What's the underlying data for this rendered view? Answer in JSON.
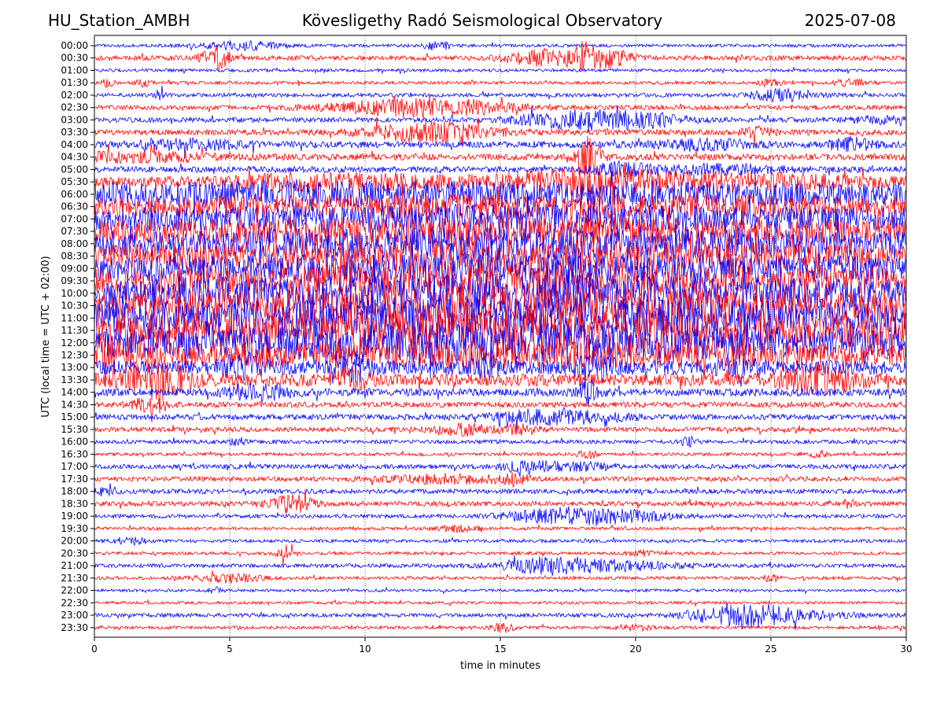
{
  "header": {
    "station": "HU_Station_AMBH",
    "observatory": "Kövesligethy Radó Seismological Observatory",
    "date": "2025-07-08"
  },
  "chart_data": {
    "type": "line",
    "title": "Kövesligethy Radó Seismological Observatory",
    "xlabel": "time in minutes",
    "ylabel": "UTC (local time = UTC + 02:00)",
    "xlim": [
      0,
      30
    ],
    "xticks": [
      0,
      5,
      10,
      15,
      20,
      25,
      30
    ],
    "grid": "vertical dotted lines at x ticks",
    "colors": {
      "blue_rows": "#0000ff",
      "red_rows": "#ff0000"
    },
    "rows": [
      {
        "label": "00:00",
        "color": "#0000ff",
        "base": 0.2,
        "bursts": [
          {
            "t": 5.5,
            "w": 1.0,
            "a": 0.5
          },
          {
            "t": 12.5,
            "w": 0.2,
            "a": 0.5
          },
          {
            "t": 13.0,
            "w": 0.1,
            "a": 0.5
          }
        ]
      },
      {
        "label": "00:30",
        "color": "#ff0000",
        "base": 0.3,
        "bursts": [
          {
            "t": 4.5,
            "w": 0.35,
            "a": 1.5
          },
          {
            "t": 16.5,
            "w": 1.0,
            "a": 0.8
          },
          {
            "t": 18.5,
            "w": 0.9,
            "a": 1.3
          }
        ]
      },
      {
        "label": "01:00",
        "color": "#0000ff",
        "base": 0.2,
        "bursts": []
      },
      {
        "label": "01:30",
        "color": "#ff0000",
        "base": 0.2,
        "bursts": [
          {
            "t": 0.5,
            "w": 0.15,
            "a": 0.5
          },
          {
            "t": 1.8,
            "w": 0.2,
            "a": 0.4
          },
          {
            "t": 25.0,
            "w": 0.3,
            "a": 0.4
          },
          {
            "t": 28.0,
            "w": 0.5,
            "a": 0.4
          }
        ]
      },
      {
        "label": "02:00",
        "color": "#0000ff",
        "base": 0.25,
        "bursts": [
          {
            "t": 2.4,
            "w": 0.1,
            "a": 0.6
          },
          {
            "t": 25.5,
            "w": 0.8,
            "a": 0.7
          }
        ]
      },
      {
        "label": "02:30",
        "color": "#ff0000",
        "base": 0.3,
        "bursts": [
          {
            "t": 11.0,
            "w": 1.8,
            "a": 0.8
          },
          {
            "t": 14.0,
            "w": 1.5,
            "a": 0.6
          }
        ]
      },
      {
        "label": "03:00",
        "color": "#0000ff",
        "base": 0.3,
        "bursts": [
          {
            "t": 18.0,
            "w": 1.5,
            "a": 1.1
          },
          {
            "t": 20.5,
            "w": 1.0,
            "a": 0.7
          },
          {
            "t": 29.0,
            "w": 0.8,
            "a": 0.4
          }
        ]
      },
      {
        "label": "03:30",
        "color": "#ff0000",
        "base": 0.35,
        "bursts": [
          {
            "t": 12.5,
            "w": 1.6,
            "a": 1.1
          },
          {
            "t": 24.5,
            "w": 0.4,
            "a": 0.5
          }
        ]
      },
      {
        "label": "04:00",
        "color": "#0000ff",
        "base": 0.4,
        "bursts": [
          {
            "t": 3.5,
            "w": 1.5,
            "a": 0.5
          },
          {
            "t": 22.5,
            "w": 1.2,
            "a": 0.6
          },
          {
            "t": 28.0,
            "w": 0.6,
            "a": 0.7
          }
        ]
      },
      {
        "label": "04:30",
        "color": "#ff0000",
        "base": 0.4,
        "bursts": [
          {
            "t": 1.5,
            "w": 2.0,
            "a": 0.5
          },
          {
            "t": 18.3,
            "w": 0.3,
            "a": 2.5
          }
        ]
      },
      {
        "label": "05:00",
        "color": "#0000ff",
        "base": 0.4,
        "bursts": [
          {
            "t": 19.5,
            "w": 0.7,
            "a": 0.7
          },
          {
            "t": 23.0,
            "w": 1.5,
            "a": 0.5
          }
        ]
      },
      {
        "label": "05:30",
        "color": "#ff0000",
        "base": 0.6,
        "bursts": [
          {
            "t": 9.0,
            "w": 3.0,
            "a": 0.8
          },
          {
            "t": 18.0,
            "w": 2.0,
            "a": 1.4
          },
          {
            "t": 24.0,
            "w": 3.0,
            "a": 0.8
          }
        ]
      },
      {
        "label": "06:00",
        "color": "#0000ff",
        "base": 1.1,
        "bursts": [
          {
            "t": 5.0,
            "w": 6.0,
            "a": 0.5
          },
          {
            "t": 20.0,
            "w": 8.0,
            "a": 0.6
          }
        ]
      },
      {
        "label": "06:30",
        "color": "#ff0000",
        "base": 1.2,
        "bursts": [
          {
            "t": 15.0,
            "w": 8.0,
            "a": 0.5
          }
        ]
      },
      {
        "label": "07:00",
        "color": "#0000ff",
        "base": 1.4,
        "bursts": [
          {
            "t": 15.0,
            "w": 8.0,
            "a": 0.5
          }
        ]
      },
      {
        "label": "07:30",
        "color": "#ff0000",
        "base": 1.4,
        "bursts": [
          {
            "t": 15.0,
            "w": 8.0,
            "a": 0.6
          }
        ]
      },
      {
        "label": "08:00",
        "color": "#0000ff",
        "base": 1.5,
        "bursts": [
          {
            "t": 15.0,
            "w": 8.0,
            "a": 0.6
          }
        ]
      },
      {
        "label": "08:30",
        "color": "#ff0000",
        "base": 1.5,
        "bursts": [
          {
            "t": 15.0,
            "w": 8.0,
            "a": 0.6
          }
        ]
      },
      {
        "label": "09:00",
        "color": "#0000ff",
        "base": 1.5,
        "bursts": [
          {
            "t": 15.0,
            "w": 8.0,
            "a": 0.6
          }
        ]
      },
      {
        "label": "09:30",
        "color": "#ff0000",
        "base": 1.6,
        "bursts": [
          {
            "t": 15.0,
            "w": 8.0,
            "a": 0.7
          }
        ]
      },
      {
        "label": "10:00",
        "color": "#0000ff",
        "base": 1.7,
        "bursts": [
          {
            "t": 15.0,
            "w": 8.0,
            "a": 0.7
          }
        ]
      },
      {
        "label": "10:30",
        "color": "#ff0000",
        "base": 1.8,
        "bursts": [
          {
            "t": 15.0,
            "w": 8.0,
            "a": 0.7
          }
        ]
      },
      {
        "label": "11:00",
        "color": "#0000ff",
        "base": 1.9,
        "bursts": [
          {
            "t": 15.0,
            "w": 8.0,
            "a": 0.7
          }
        ]
      },
      {
        "label": "11:30",
        "color": "#ff0000",
        "base": 1.9,
        "bursts": [
          {
            "t": 15.0,
            "w": 8.0,
            "a": 0.8
          }
        ]
      },
      {
        "label": "12:00",
        "color": "#0000ff",
        "base": 1.8,
        "bursts": [
          {
            "t": 15.0,
            "w": 8.0,
            "a": 0.7
          }
        ]
      },
      {
        "label": "12:30",
        "color": "#ff0000",
        "base": 1.4,
        "bursts": [
          {
            "t": 0.5,
            "w": 1.0,
            "a": 1.0
          },
          {
            "t": 15.0,
            "w": 8.0,
            "a": 0.4
          }
        ]
      },
      {
        "label": "13:00",
        "color": "#0000ff",
        "base": 0.9,
        "bursts": [
          {
            "t": 5.5,
            "w": 0.6,
            "a": 1.2
          },
          {
            "t": 9.6,
            "w": 0.5,
            "a": 1.3
          },
          {
            "t": 14.5,
            "w": 0.4,
            "a": 1.0
          },
          {
            "t": 18.5,
            "w": 0.5,
            "a": 1.2
          },
          {
            "t": 24.0,
            "w": 0.6,
            "a": 0.8
          }
        ]
      },
      {
        "label": "13:30",
        "color": "#ff0000",
        "base": 0.8,
        "bursts": [
          {
            "t": 2.3,
            "w": 0.8,
            "a": 2.0
          },
          {
            "t": 9.5,
            "w": 0.4,
            "a": 1.2
          },
          {
            "t": 26.8,
            "w": 1.0,
            "a": 1.4
          }
        ]
      },
      {
        "label": "14:00",
        "color": "#0000ff",
        "base": 0.5,
        "bursts": [
          {
            "t": 6.0,
            "w": 0.8,
            "a": 0.9
          },
          {
            "t": 18.3,
            "w": 0.3,
            "a": 1.2
          }
        ]
      },
      {
        "label": "14:30",
        "color": "#ff0000",
        "base": 0.35,
        "bursts": [
          {
            "t": 2.0,
            "w": 0.4,
            "a": 0.8
          }
        ]
      },
      {
        "label": "15:00",
        "color": "#0000ff",
        "base": 0.35,
        "bursts": [
          {
            "t": 16.0,
            "w": 1.0,
            "a": 0.6
          },
          {
            "t": 18.0,
            "w": 1.2,
            "a": 0.6
          }
        ]
      },
      {
        "label": "15:30",
        "color": "#ff0000",
        "base": 0.3,
        "bursts": [
          {
            "t": 13.5,
            "w": 0.8,
            "a": 0.7
          },
          {
            "t": 15.8,
            "w": 0.5,
            "a": 0.6
          }
        ]
      },
      {
        "label": "16:00",
        "color": "#0000ff",
        "base": 0.25,
        "bursts": [
          {
            "t": 5.3,
            "w": 0.2,
            "a": 0.5
          },
          {
            "t": 22.0,
            "w": 0.2,
            "a": 0.5
          }
        ]
      },
      {
        "label": "16:30",
        "color": "#ff0000",
        "base": 0.2,
        "bursts": [
          {
            "t": 18.3,
            "w": 0.3,
            "a": 0.4
          },
          {
            "t": 26.8,
            "w": 0.3,
            "a": 0.4
          }
        ]
      },
      {
        "label": "17:00",
        "color": "#0000ff",
        "base": 0.3,
        "bursts": [
          {
            "t": 16.0,
            "w": 0.6,
            "a": 0.7
          },
          {
            "t": 18.0,
            "w": 0.8,
            "a": 0.5
          }
        ]
      },
      {
        "label": "17:30",
        "color": "#ff0000",
        "base": 0.3,
        "bursts": [
          {
            "t": 13.0,
            "w": 1.5,
            "a": 0.5
          },
          {
            "t": 15.5,
            "w": 0.4,
            "a": 0.6
          }
        ]
      },
      {
        "label": "18:00",
        "color": "#0000ff",
        "base": 0.3,
        "bursts": [
          {
            "t": 0.3,
            "w": 0.4,
            "a": 0.4
          }
        ]
      },
      {
        "label": "18:30",
        "color": "#ff0000",
        "base": 0.3,
        "bursts": [
          {
            "t": 7.2,
            "w": 0.6,
            "a": 1.1
          },
          {
            "t": 27.9,
            "w": 0.15,
            "a": 0.5
          }
        ]
      },
      {
        "label": "19:00",
        "color": "#0000ff",
        "base": 0.25,
        "bursts": [
          {
            "t": 17.0,
            "w": 1.2,
            "a": 0.9
          },
          {
            "t": 19.5,
            "w": 1.3,
            "a": 0.7
          }
        ]
      },
      {
        "label": "19:30",
        "color": "#ff0000",
        "base": 0.2,
        "bursts": [
          {
            "t": 13.5,
            "w": 0.5,
            "a": 0.4
          }
        ]
      },
      {
        "label": "20:00",
        "color": "#0000ff",
        "base": 0.2,
        "bursts": [
          {
            "t": 1.3,
            "w": 0.4,
            "a": 0.4
          }
        ]
      },
      {
        "label": "20:30",
        "color": "#ff0000",
        "base": 0.2,
        "bursts": [
          {
            "t": 7.1,
            "w": 0.3,
            "a": 0.5
          },
          {
            "t": 20.2,
            "w": 0.3,
            "a": 0.4
          }
        ]
      },
      {
        "label": "21:00",
        "color": "#0000ff",
        "base": 0.25,
        "bursts": [
          {
            "t": 16.8,
            "w": 1.2,
            "a": 1.0
          },
          {
            "t": 19.5,
            "w": 1.5,
            "a": 0.5
          }
        ]
      },
      {
        "label": "21:30",
        "color": "#ff0000",
        "base": 0.2,
        "bursts": [
          {
            "t": 5.0,
            "w": 0.8,
            "a": 0.5
          },
          {
            "t": 25.0,
            "w": 0.2,
            "a": 0.5
          }
        ]
      },
      {
        "label": "22:00",
        "color": "#0000ff",
        "base": 0.18,
        "bursts": [
          {
            "t": 4.5,
            "w": 0.2,
            "a": 0.3
          }
        ]
      },
      {
        "label": "22:30",
        "color": "#ff0000",
        "base": 0.18,
        "bursts": []
      },
      {
        "label": "23:00",
        "color": "#0000ff",
        "base": 0.25,
        "bursts": [
          {
            "t": 23.8,
            "w": 1.2,
            "a": 1.4
          },
          {
            "t": 26.0,
            "w": 1.5,
            "a": 0.4
          }
        ]
      },
      {
        "label": "23:30",
        "color": "#ff0000",
        "base": 0.2,
        "bursts": [
          {
            "t": 15.1,
            "w": 0.3,
            "a": 0.5
          },
          {
            "t": 20.0,
            "w": 0.5,
            "a": 0.3
          }
        ]
      }
    ]
  }
}
